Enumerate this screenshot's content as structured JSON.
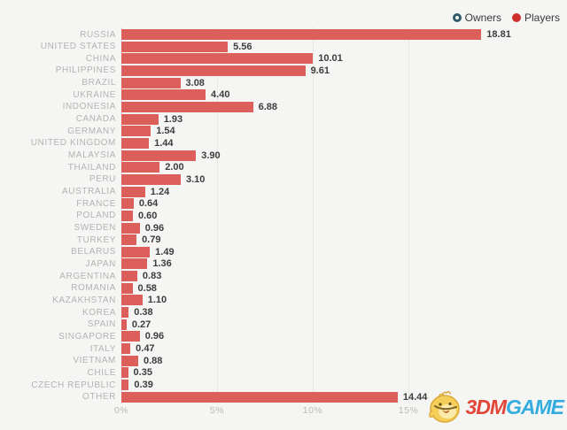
{
  "legend": {
    "items": [
      {
        "label": "Owners",
        "marker": "hollow-circle",
        "color": "#31596b",
        "active": false
      },
      {
        "label": "Players",
        "marker": "filled-circle",
        "color": "#cf2e2e",
        "active": true
      }
    ]
  },
  "colors": {
    "background": "#f5f5f3",
    "bar": "#dd5f5b",
    "gridline": "#e6e6e3",
    "country_label": "#b3b3b3",
    "value_label": "#3d3d3d",
    "tick_label": "#b9b9b9"
  },
  "chart_data": {
    "type": "bar",
    "orientation": "horizontal",
    "series_shown": "Players",
    "categories": [
      "RUSSIA",
      "UNITED STATES",
      "CHINA",
      "PHILIPPINES",
      "BRAZIL",
      "UKRAINE",
      "INDONESIA",
      "CANADA",
      "GERMANY",
      "UNITED KINGDOM",
      "MALAYSIA",
      "THAILAND",
      "PERU",
      "AUSTRALIA",
      "FRANCE",
      "POLAND",
      "SWEDEN",
      "TURKEY",
      "BELARUS",
      "JAPAN",
      "ARGENTINA",
      "ROMANIA",
      "KAZAKHSTAN",
      "KOREA",
      "SPAIN",
      "SINGAPORE",
      "ITALY",
      "VIETNAM",
      "CHILE",
      "CZECH REPUBLIC",
      "OTHER"
    ],
    "values": [
      18.81,
      5.56,
      10.01,
      9.61,
      3.08,
      4.4,
      6.88,
      1.93,
      1.54,
      1.44,
      3.9,
      2.0,
      3.1,
      1.24,
      0.64,
      0.6,
      0.96,
      0.79,
      1.49,
      1.36,
      0.83,
      0.58,
      1.1,
      0.38,
      0.27,
      0.96,
      0.47,
      0.88,
      0.35,
      0.39,
      14.44
    ],
    "value_decimals": 2,
    "xlabel": "",
    "ylabel": "",
    "x_ticks_percent": [
      0,
      5,
      10,
      15
    ],
    "x_tick_suffix": "%",
    "xlim": [
      0,
      23.3
    ],
    "grid": "vertical",
    "legend_position": "top-right"
  },
  "watermark": {
    "mascot": "chick-mascot",
    "text_red": "3DM",
    "text_blue": "GAME"
  }
}
